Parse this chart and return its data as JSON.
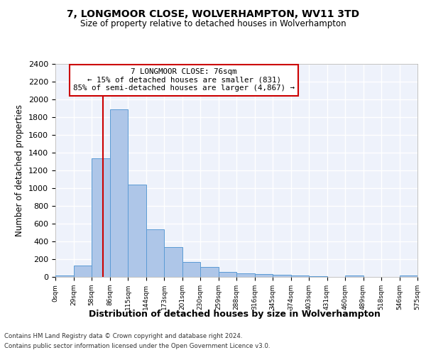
{
  "title1": "7, LONGMOOR CLOSE, WOLVERHAMPTON, WV11 3TD",
  "title2": "Size of property relative to detached houses in Wolverhampton",
  "xlabel": "Distribution of detached houses by size in Wolverhampton",
  "ylabel": "Number of detached properties",
  "bar_values": [
    15,
    125,
    1340,
    1890,
    1040,
    540,
    335,
    170,
    110,
    60,
    40,
    30,
    25,
    20,
    10,
    0,
    20,
    0,
    0,
    15
  ],
  "bin_labels": [
    "0sqm",
    "29sqm",
    "58sqm",
    "86sqm",
    "115sqm",
    "144sqm",
    "173sqm",
    "201sqm",
    "230sqm",
    "259sqm",
    "288sqm",
    "316sqm",
    "345sqm",
    "374sqm",
    "403sqm",
    "431sqm",
    "460sqm",
    "489sqm",
    "518sqm",
    "546sqm",
    "575sqm"
  ],
  "bar_color": "#aec6e8",
  "bar_edge_color": "#5b9bd5",
  "bg_color": "#eef2fb",
  "grid_color": "#ffffff",
  "annotation_text": "7 LONGMOOR CLOSE: 76sqm\n← 15% of detached houses are smaller (831)\n85% of semi-detached houses are larger (4,867) →",
  "vline_color": "#cc0000",
  "ylim_max": 2400,
  "footnote1": "Contains HM Land Registry data © Crown copyright and database right 2024.",
  "footnote2": "Contains public sector information licensed under the Open Government Licence v3.0."
}
